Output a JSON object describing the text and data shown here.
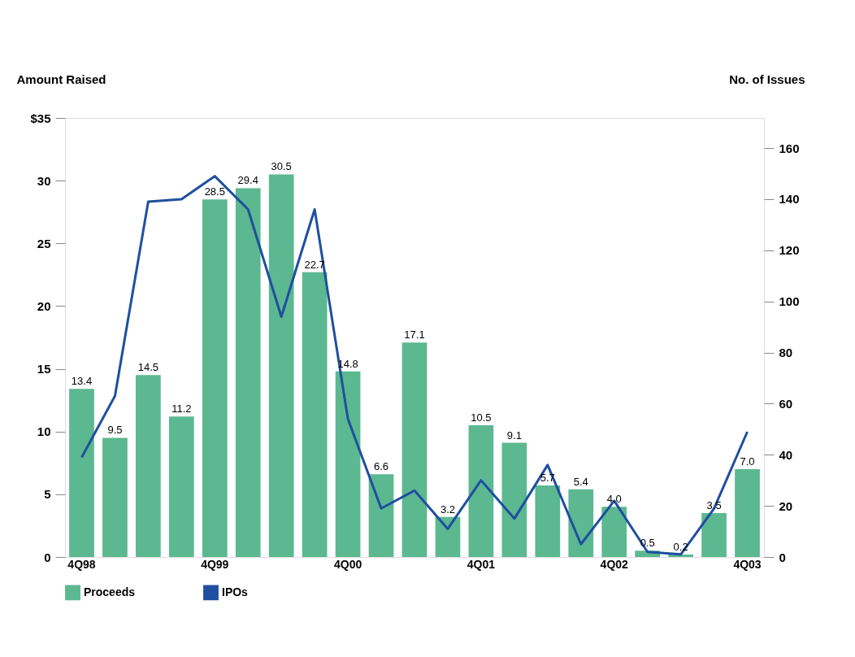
{
  "chart_data": {
    "type": "bar",
    "ylabel": "Amount Raised",
    "y2label": "No. of Issues",
    "categories": [
      "4Q98",
      null,
      null,
      null,
      "4Q99",
      null,
      null,
      null,
      "4Q00",
      null,
      null,
      null,
      "4Q01",
      null,
      null,
      null,
      "4Q02",
      null,
      null,
      null,
      "4Q03"
    ],
    "series": [
      {
        "name": "Proceeds",
        "color": "#5cb890",
        "values": [
          13.4,
          9.5,
          14.5,
          11.2,
          28.5,
          29.4,
          30.5,
          22.7,
          14.8,
          6.6,
          17.1,
          3.2,
          10.5,
          9.1,
          5.7,
          5.4,
          4.0,
          0.5,
          0.2,
          3.5,
          7.0
        ],
        "value_labels": [
          "13.4",
          "9.5",
          "14.5",
          "11.2",
          "28.5",
          "29.4",
          "30.5",
          "22.7",
          "14.8",
          "6.6",
          "17.1",
          "3.2",
          "10.5",
          "9.1",
          "5.7",
          "5.4",
          "4.0",
          "0.5",
          "0.2",
          "3.5",
          "7.0"
        ]
      },
      {
        "name": "IPOs",
        "type": "line",
        "axis": "y2",
        "color": "#1f4fa0",
        "values": [
          39,
          63,
          139,
          140,
          149,
          136,
          94,
          136,
          54,
          19,
          26,
          11,
          30,
          15,
          36,
          5,
          22,
          2,
          1,
          19,
          49
        ]
      }
    ],
    "ylim": [
      0,
      35
    ],
    "yticks": [
      0,
      5,
      10,
      15,
      20,
      25,
      30,
      {
        "value": 35,
        "label": "$35"
      }
    ],
    "y2lim": [
      0,
      171.8
    ],
    "y2ticks": [
      0,
      20,
      40,
      60,
      80,
      100,
      120,
      140,
      160
    ],
    "grid": false,
    "legend": "bottom"
  }
}
